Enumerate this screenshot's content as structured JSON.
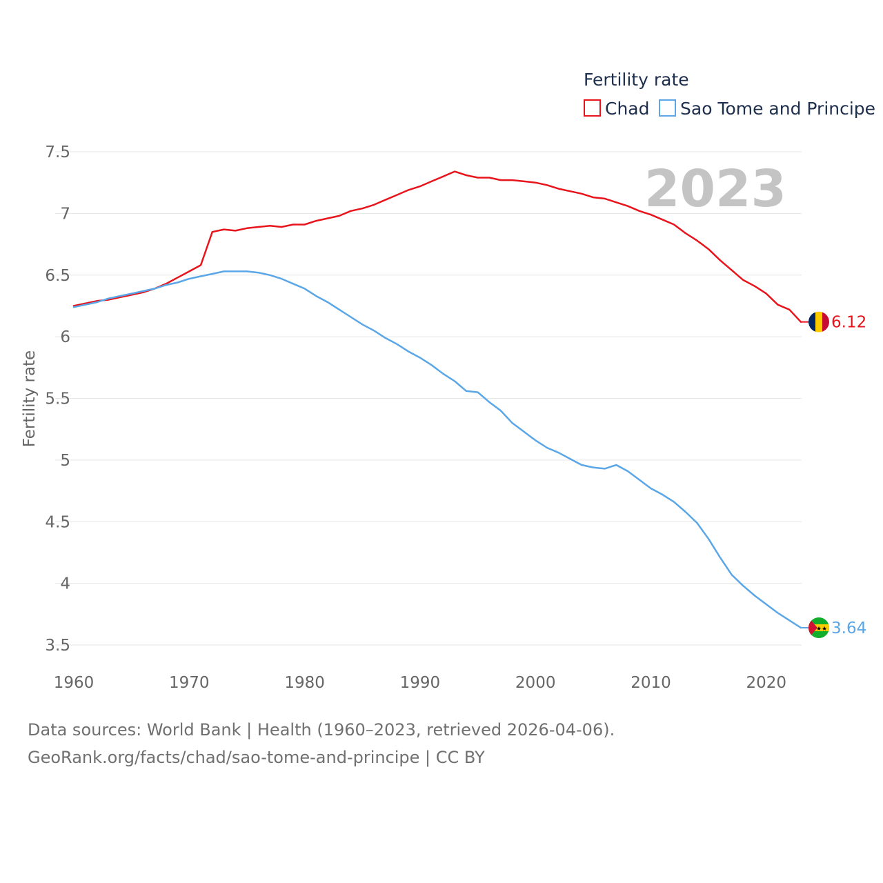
{
  "chart_data": {
    "type": "line",
    "title": "",
    "legend_title": "Fertility rate",
    "ylabel": "Fertility rate",
    "xlabel": "",
    "year_label": "2023",
    "xlim": [
      1960,
      2023
    ],
    "ylim": [
      3.5,
      7.5
    ],
    "x_ticks": [
      1960,
      1970,
      1980,
      1990,
      2000,
      2010,
      2020
    ],
    "y_ticks": [
      3.5,
      4,
      4.5,
      5,
      5.5,
      6,
      6.5,
      7,
      7.5
    ],
    "y_tick_labels": [
      "3.5",
      "4",
      "4.5",
      "5",
      "5.5",
      "6",
      "6.5",
      "7",
      "7.5"
    ],
    "legend_position": "top-right",
    "x": [
      1960,
      1961,
      1962,
      1963,
      1964,
      1965,
      1966,
      1967,
      1968,
      1969,
      1970,
      1971,
      1972,
      1973,
      1974,
      1975,
      1976,
      1977,
      1978,
      1979,
      1980,
      1981,
      1982,
      1983,
      1984,
      1985,
      1986,
      1987,
      1988,
      1989,
      1990,
      1991,
      1992,
      1993,
      1994,
      1995,
      1996,
      1997,
      1998,
      1999,
      2000,
      2001,
      2002,
      2003,
      2004,
      2005,
      2006,
      2007,
      2008,
      2009,
      2010,
      2011,
      2012,
      2013,
      2014,
      2015,
      2016,
      2017,
      2018,
      2019,
      2020,
      2021,
      2022,
      2023
    ],
    "series": [
      {
        "name": "Chad",
        "color": "#e8141c",
        "end_label": "6.12",
        "flag": "chad",
        "values": [
          6.25,
          6.27,
          6.29,
          6.3,
          6.32,
          6.34,
          6.36,
          6.39,
          6.43,
          6.48,
          6.53,
          6.58,
          6.85,
          6.87,
          6.86,
          6.88,
          6.89,
          6.9,
          6.89,
          6.91,
          6.91,
          6.94,
          6.96,
          6.98,
          7.02,
          7.04,
          7.07,
          7.11,
          7.15,
          7.19,
          7.22,
          7.26,
          7.3,
          7.34,
          7.31,
          7.29,
          7.29,
          7.27,
          7.27,
          7.26,
          7.25,
          7.23,
          7.2,
          7.18,
          7.16,
          7.13,
          7.12,
          7.09,
          7.06,
          7.02,
          6.99,
          6.95,
          6.91,
          6.84,
          6.78,
          6.71,
          6.62,
          6.54,
          6.46,
          6.41,
          6.35,
          6.26,
          6.22,
          6.12
        ]
      },
      {
        "name": "Sao Tome and Principe",
        "color": "#5aa6e6",
        "end_label": "3.64",
        "flag": "sao-tome",
        "values": [
          6.24,
          6.26,
          6.28,
          6.31,
          6.33,
          6.35,
          6.37,
          6.39,
          6.42,
          6.44,
          6.47,
          6.49,
          6.51,
          6.53,
          6.53,
          6.53,
          6.52,
          6.5,
          6.47,
          6.43,
          6.39,
          6.33,
          6.28,
          6.22,
          6.16,
          6.1,
          6.05,
          5.99,
          5.94,
          5.88,
          5.83,
          5.77,
          5.7,
          5.64,
          5.56,
          5.55,
          5.47,
          5.4,
          5.3,
          5.23,
          5.16,
          5.1,
          5.06,
          5.01,
          4.96,
          4.94,
          4.93,
          4.96,
          4.91,
          4.84,
          4.77,
          4.72,
          4.66,
          4.58,
          4.49,
          4.36,
          4.21,
          4.07,
          3.98,
          3.9,
          3.83,
          3.76,
          3.7,
          3.64
        ]
      }
    ]
  },
  "footer": {
    "line1": "Data sources: World Bank | Health (1960–2023, retrieved 2026-04-06).",
    "line2": "GeoRank.org/facts/chad/sao-tome-and-principe | CC BY"
  }
}
